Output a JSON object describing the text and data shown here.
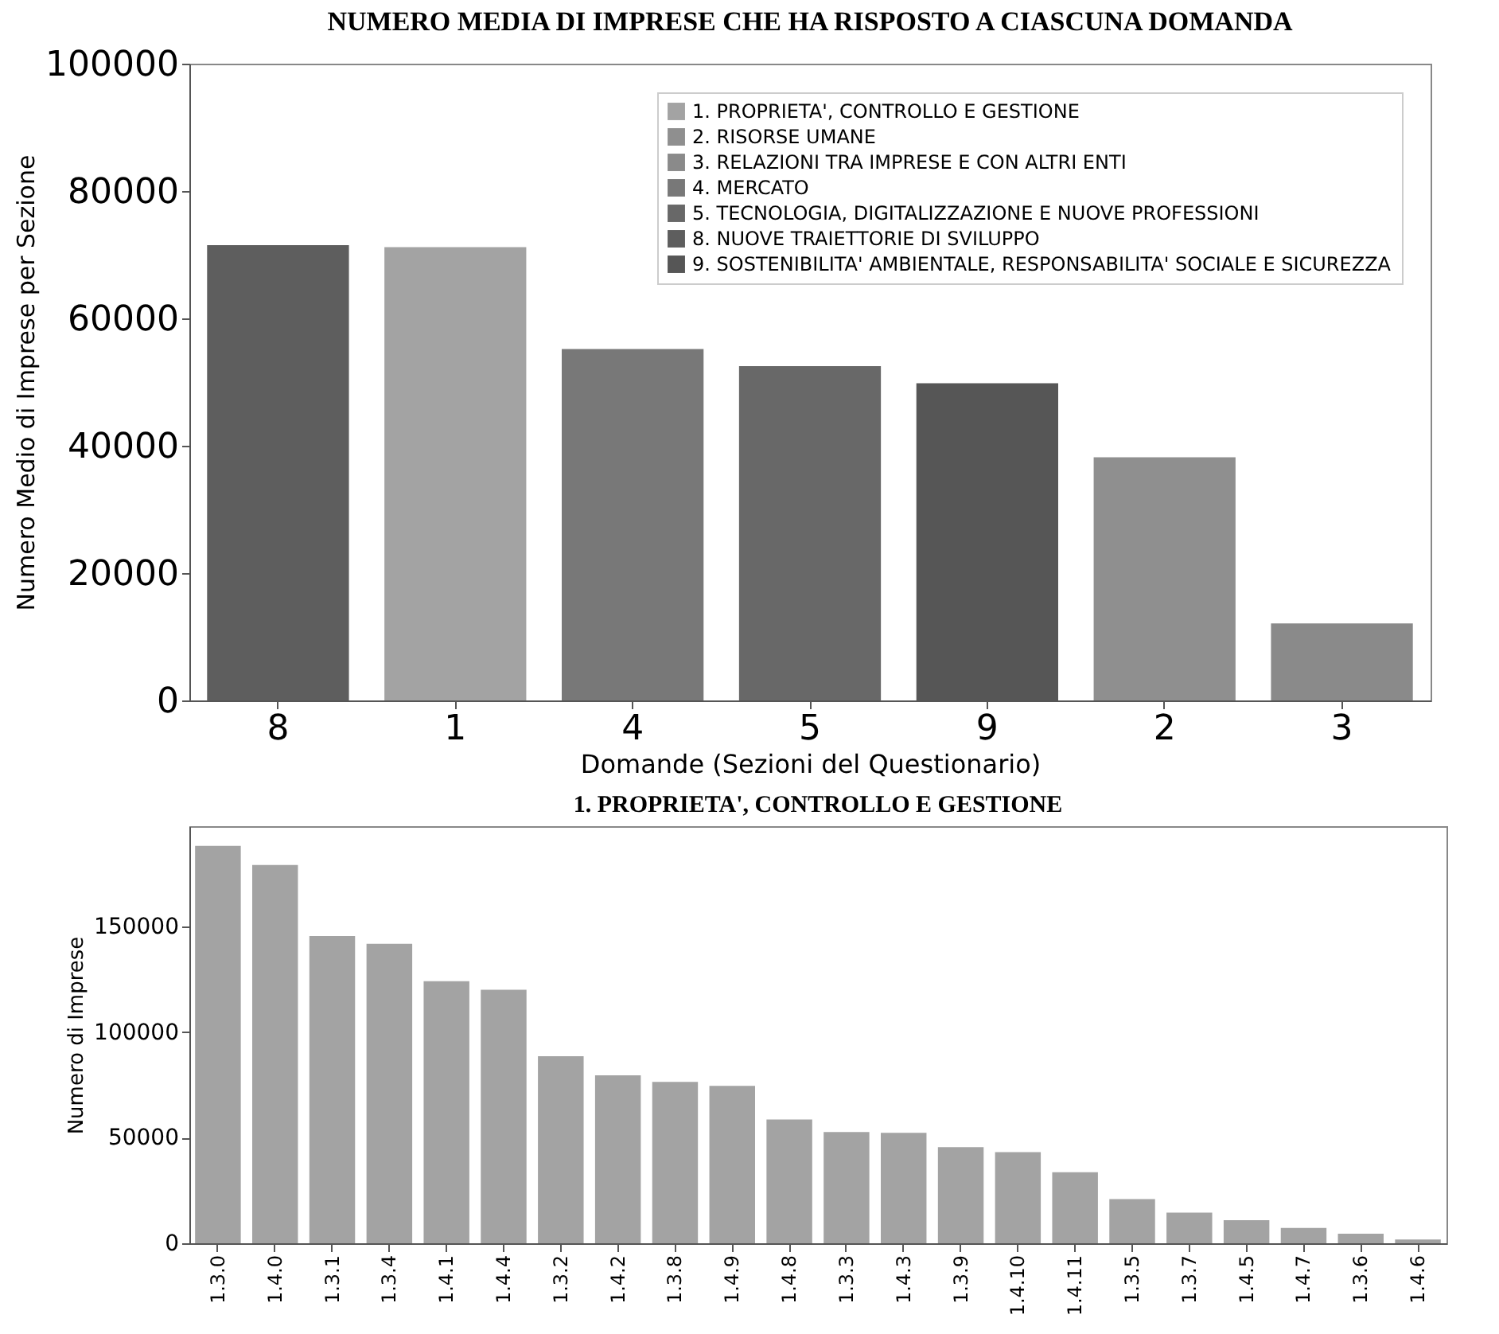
{
  "chart_data": [
    {
      "type": "bar",
      "title": "NUMERO MEDIA DI IMPRESE CHE HA RISPOSTO A CIASCUNA DOMANDA",
      "xlabel": "Domande (Sezioni del Questionario)",
      "ylabel": "Numero Medio di Imprese per Sezione",
      "categories": [
        "8",
        "1",
        "4",
        "5",
        "9",
        "2",
        "3"
      ],
      "series": [
        {
          "name": "1. PROPRIETA', CONTROLLO E GESTIONE",
          "color": "#a3a3a3",
          "values": [
            null,
            71200,
            null,
            null,
            null,
            null,
            null
          ]
        },
        {
          "name": "2. RISORSE UMANE",
          "color": "#8f8f8f",
          "values": [
            null,
            null,
            null,
            null,
            null,
            38200,
            null
          ]
        },
        {
          "name": "3. RELAZIONI TRA IMPRESE E CON ALTRI ENTI",
          "color": "#8a8a8a",
          "values": [
            null,
            null,
            null,
            null,
            null,
            null,
            12100
          ]
        },
        {
          "name": "4. MERCATO",
          "color": "#787878",
          "values": [
            null,
            null,
            55200,
            null,
            null,
            null,
            null
          ]
        },
        {
          "name": "5. TECNOLOGIA, DIGITALIZZAZIONE E NUOVE PROFESSIONI",
          "color": "#686868",
          "values": [
            null,
            null,
            null,
            52500,
            null,
            null,
            null
          ]
        },
        {
          "name": "8. NUOVE TRAIETTORIE DI SVILUPPO",
          "color": "#5e5e5e",
          "values": [
            71500,
            null,
            null,
            null,
            null,
            null,
            null
          ]
        },
        {
          "name": "9. SOSTENIBILITA' AMBIENTALE, RESPONSABILITA' SOCIALE E SICUREZZA",
          "color": "#565656",
          "values": [
            null,
            null,
            null,
            null,
            49800,
            null,
            null
          ]
        }
      ],
      "ylim": [
        0,
        100000
      ],
      "yticks": [
        0,
        20000,
        40000,
        60000,
        80000,
        100000
      ],
      "legend": "top right"
    },
    {
      "type": "bar",
      "title": "1. PROPRIETA', CONTROLLO E GESTIONE",
      "ylabel": "Numero di Imprese",
      "categories": [
        "1.3.0",
        "1.4.0",
        "1.3.1",
        "1.3.4",
        "1.4.1",
        "1.4.4",
        "1.3.2",
        "1.4.2",
        "1.3.8",
        "1.4.9",
        "1.4.8",
        "1.3.3",
        "1.4.3",
        "1.3.9",
        "1.4.10",
        "1.4.11",
        "1.3.5",
        "1.3.7",
        "1.4.5",
        "1.4.7",
        "1.3.6",
        "1.4.6"
      ],
      "series": [
        {
          "color": "#a3a3a3",
          "values": [
            188200,
            179100,
            145500,
            141800,
            124100,
            120000,
            88600,
            79500,
            76400,
            74500,
            58600,
            52700,
            52300,
            45500,
            43200,
            33600,
            20900,
            14500,
            10900,
            7300,
            4500,
            1800
          ]
        }
      ],
      "ylim": [
        0,
        197500
      ],
      "yticks": [
        0,
        50000,
        100000,
        150000
      ]
    }
  ]
}
